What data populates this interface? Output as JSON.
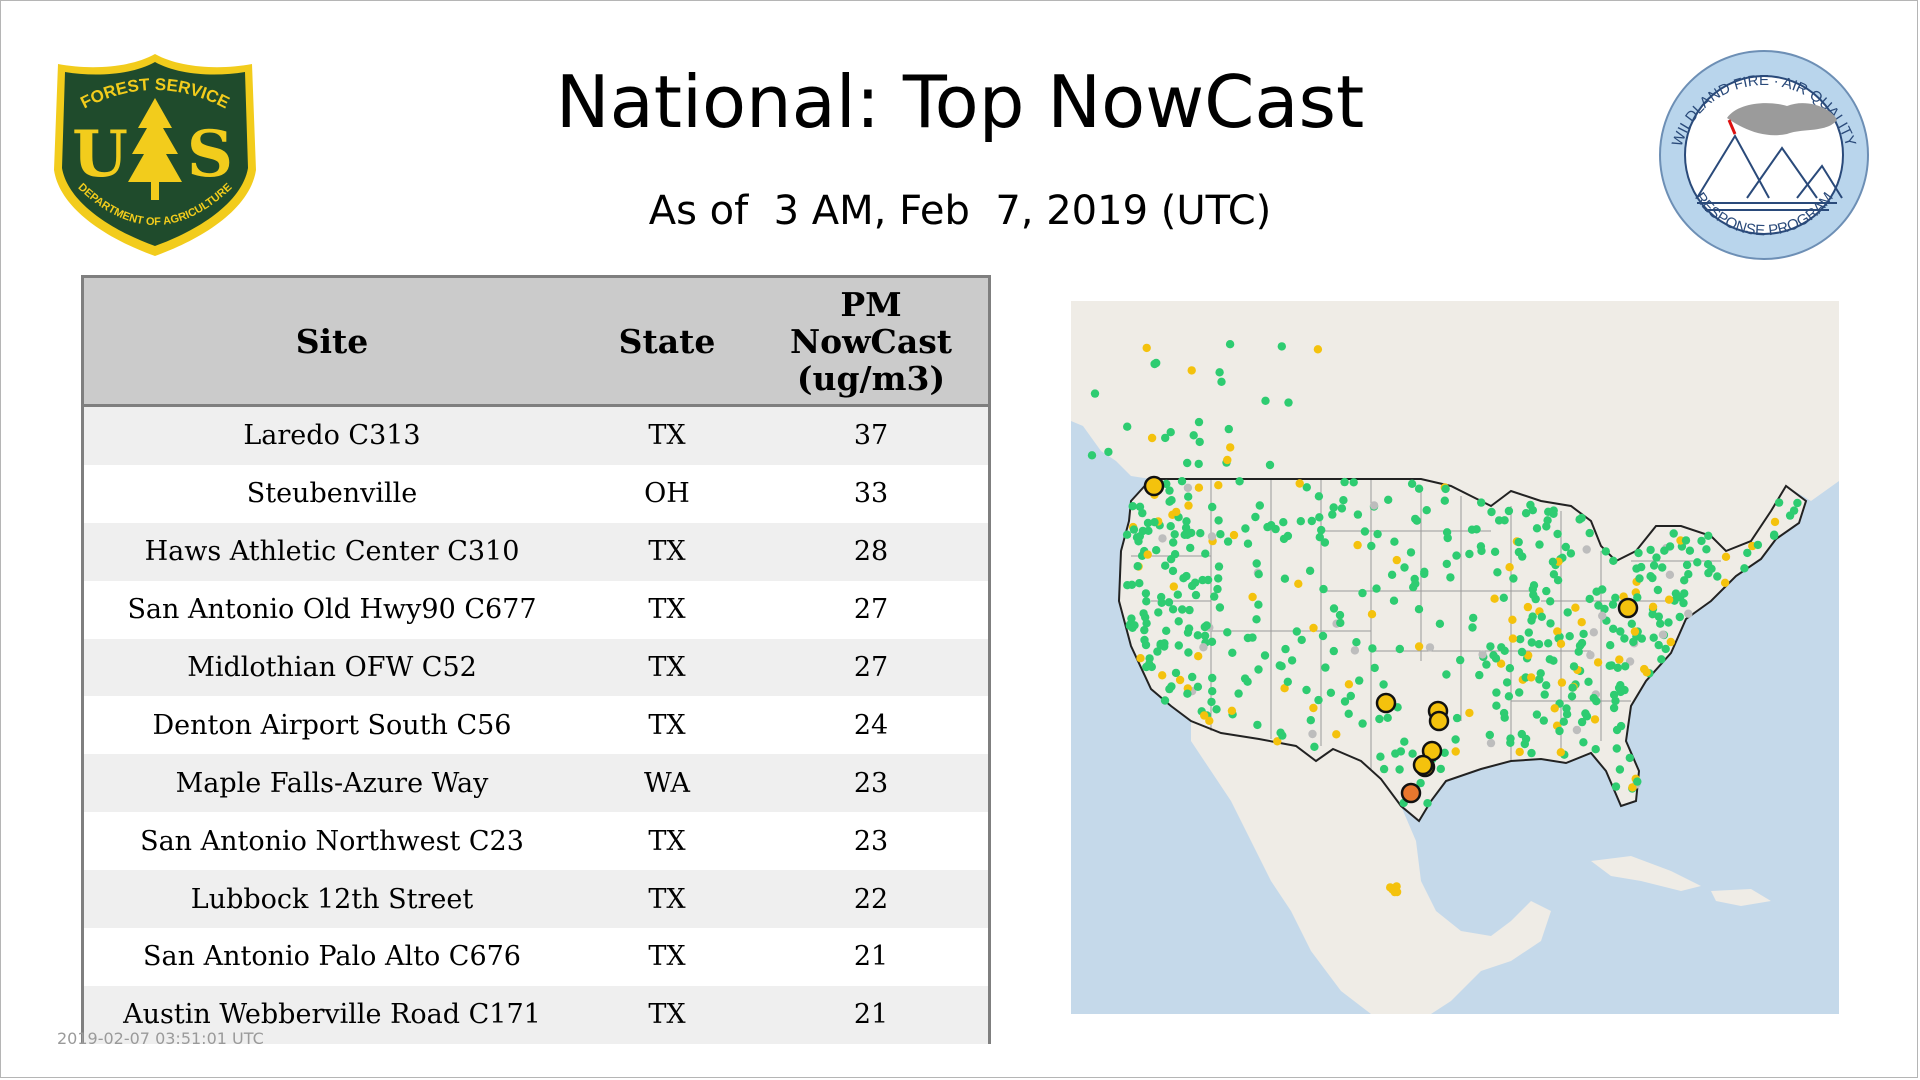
{
  "slide": {
    "title": "National: Top NowCast",
    "subtitle": "As of  3 AM, Feb  7, 2019 (UTC)",
    "footer": "2019-02-07 03:51:01 UTC"
  },
  "logos": {
    "usfs": {
      "top_text": "FOREST SERVICE",
      "letters_left": "U",
      "letters_right": "S",
      "bottom_text": "DEPARTMENT OF AGRICULTURE",
      "colors": {
        "shield": "#1f4b2c",
        "gold": "#f2cc1c"
      }
    },
    "wfaq": {
      "top_text": "WILDLAND FIRE · AIR QUALITY",
      "bottom_text": "RESPONSE PROGRAM",
      "colors": {
        "ring": "#b9d5ec",
        "text": "#2a4a7a"
      }
    }
  },
  "table": {
    "headers": {
      "site": "Site",
      "state": "State",
      "value_l1": "PM",
      "value_l2": "NowCast",
      "value_l3": "(ug/m3)"
    },
    "rows": [
      {
        "site": "Laredo C313",
        "state": "TX",
        "value": "37"
      },
      {
        "site": "Steubenville",
        "state": "OH",
        "value": "33"
      },
      {
        "site": "Haws Athletic Center C310",
        "state": "TX",
        "value": "28"
      },
      {
        "site": "San Antonio Old Hwy90 C677",
        "state": "TX",
        "value": "27"
      },
      {
        "site": "Midlothian OFW C52",
        "state": "TX",
        "value": "27"
      },
      {
        "site": "Denton Airport South C56",
        "state": "TX",
        "value": "24"
      },
      {
        "site": "Maple Falls-Azure Way",
        "state": "WA",
        "value": "23"
      },
      {
        "site": "San Antonio Northwest C23",
        "state": "TX",
        "value": "23"
      },
      {
        "site": "Lubbock 12th Street",
        "state": "TX",
        "value": "22"
      },
      {
        "site": "San Antonio Palo Alto C676",
        "state": "TX",
        "value": "21"
      },
      {
        "site": "Austin Webberville Road C171",
        "state": "TX",
        "value": "21"
      }
    ]
  },
  "map": {
    "colors": {
      "ocean": "#c5d9ea",
      "land": "#efece6",
      "border": "#222222",
      "state_line": "#9a9a9a",
      "good": "#2ecc71",
      "moderate": "#f4c20d",
      "usg": "#e8772e",
      "nodata": "#bdbdbd"
    },
    "highlighted_sites": [
      {
        "name": "Laredo C313",
        "category": "usg"
      },
      {
        "name": "Steubenville",
        "category": "moderate"
      },
      {
        "name": "Maple Falls-Azure Way",
        "category": "moderate"
      },
      {
        "name": "Lubbock 12th Street",
        "category": "moderate"
      },
      {
        "name": "Midlothian OFW C52",
        "category": "moderate"
      },
      {
        "name": "Denton Airport South C56",
        "category": "moderate"
      },
      {
        "name": "Austin Webberville Road C171",
        "category": "moderate"
      },
      {
        "name": "San Antonio Northwest C23",
        "category": "moderate"
      },
      {
        "name": "San Antonio Old Hwy90 C677",
        "category": "moderate"
      }
    ]
  }
}
